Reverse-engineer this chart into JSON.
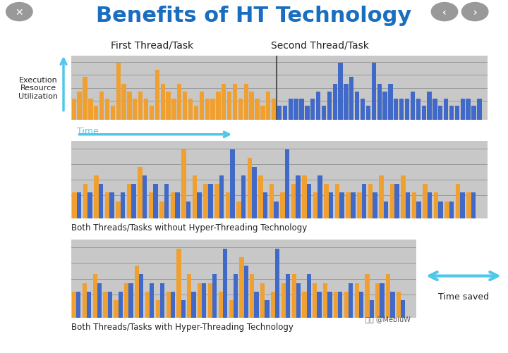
{
  "title": "Benefits of HT Technology",
  "title_color": "#1a6ec0",
  "title_fontsize": 22,
  "bg_color": "#ffffff",
  "panel_bg": "#c8c8c8",
  "orange_color": "#f0a030",
  "blue_color": "#4169c8",
  "arrow_color": "#50c8e8",
  "thread1_label": "First Thread/Task",
  "thread2_label": "Second Thread/Task",
  "ylabel_text": "Execution\nResource\nUtilization",
  "time_label": "Time",
  "caption1": "Both Threads/Tasks without Hyper-Threading Technology",
  "caption2": "Both Threads/Tasks with Hyper-Threading Technology",
  "time_saved_label": "Time saved",
  "watermark": "知乎 @MebiuW",
  "orange_bars_top": [
    3,
    4,
    6,
    3,
    2,
    4,
    3,
    2,
    8,
    5,
    4,
    3,
    4,
    3,
    2,
    7,
    5,
    4,
    3,
    5,
    4,
    3,
    2,
    4,
    3,
    3,
    4,
    5,
    4,
    5,
    3,
    5,
    4,
    3,
    2,
    4,
    3
  ],
  "blue_bars_top": [
    2,
    2,
    3,
    3,
    3,
    2,
    3,
    4,
    2,
    4,
    5,
    8,
    5,
    6,
    4,
    3,
    2,
    8,
    5,
    4,
    5,
    3,
    3,
    3,
    4,
    3,
    2,
    4,
    3,
    2,
    3,
    2,
    2,
    3,
    3,
    2,
    3
  ],
  "mixed_orange": [
    3,
    4,
    5,
    3,
    2,
    4,
    6,
    3,
    2,
    3,
    8,
    5,
    4,
    4,
    3,
    2,
    7,
    5,
    4,
    3,
    4,
    5,
    3,
    4,
    4,
    3,
    3,
    4,
    5,
    4,
    5,
    3,
    4,
    3,
    2,
    4,
    3
  ],
  "mixed_blue": [
    3,
    3,
    4,
    3,
    3,
    4,
    5,
    4,
    4,
    3,
    2,
    3,
    4,
    5,
    8,
    5,
    6,
    3,
    2,
    8,
    5,
    4,
    5,
    3,
    3,
    3,
    4,
    3,
    2,
    4,
    3,
    2,
    3,
    2,
    2,
    3,
    3
  ],
  "ht_orange": [
    3,
    4,
    5,
    3,
    2,
    4,
    6,
    3,
    2,
    3,
    8,
    5,
    4,
    4,
    3,
    2,
    7,
    5,
    4,
    3,
    4,
    5,
    3,
    4,
    4,
    3,
    3,
    4,
    5,
    4,
    5,
    3
  ],
  "ht_blue": [
    3,
    3,
    4,
    3,
    3,
    4,
    5,
    4,
    4,
    3,
    2,
    3,
    4,
    5,
    8,
    5,
    6,
    3,
    2,
    8,
    5,
    4,
    5,
    3,
    3,
    3,
    4,
    3,
    2,
    4,
    3,
    2
  ]
}
